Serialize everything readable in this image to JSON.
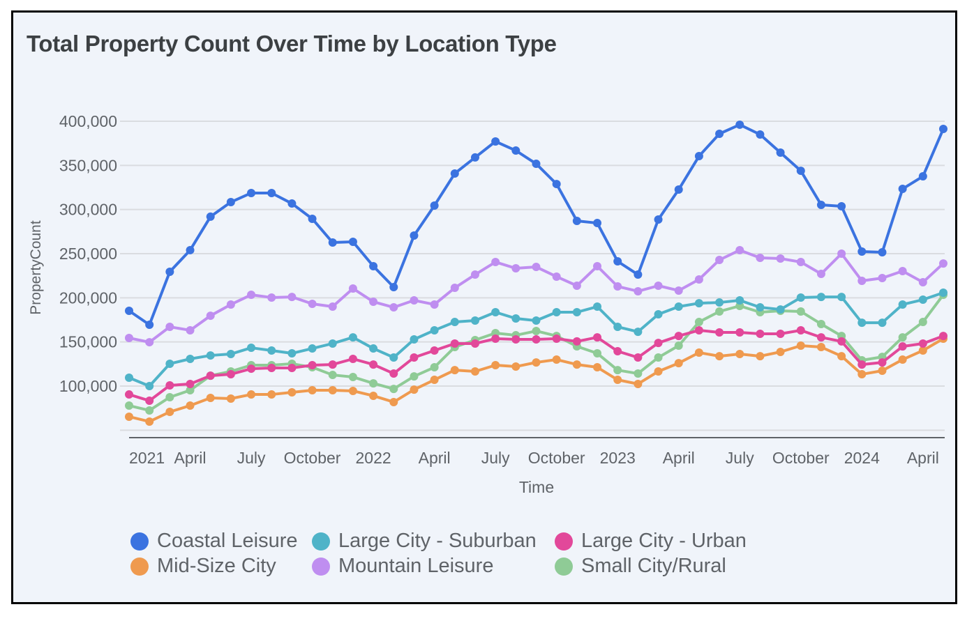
{
  "chart_data": {
    "type": "line",
    "title": "Total Property Count Over Time by Location Type",
    "xlabel": "Time",
    "ylabel": "PropertyCount",
    "ylim": [
      41600,
      400000
    ],
    "grid": true,
    "legend_position": "bottom",
    "yticks": [
      {
        "value": 50000,
        "label": ""
      },
      {
        "value": 100000,
        "label": "100,000"
      },
      {
        "value": 150000,
        "label": "150,000"
      },
      {
        "value": 200000,
        "label": "200,000"
      },
      {
        "value": 250000,
        "label": "250,000"
      },
      {
        "value": 300000,
        "label": "300,000"
      },
      {
        "value": 350000,
        "label": "350,000"
      },
      {
        "value": 400000,
        "label": "400,000"
      }
    ],
    "xticks": [
      {
        "index": 0,
        "label": "2021"
      },
      {
        "index": 3,
        "label": "April"
      },
      {
        "index": 6,
        "label": "July"
      },
      {
        "index": 9,
        "label": "October"
      },
      {
        "index": 12,
        "label": "2022"
      },
      {
        "index": 15,
        "label": "April"
      },
      {
        "index": 18,
        "label": "July"
      },
      {
        "index": 21,
        "label": "October"
      },
      {
        "index": 24,
        "label": "2023"
      },
      {
        "index": 27,
        "label": "April"
      },
      {
        "index": 30,
        "label": "July"
      },
      {
        "index": 33,
        "label": "October"
      },
      {
        "index": 36,
        "label": "2024"
      },
      {
        "index": 39,
        "label": "April"
      }
    ],
    "x_start": "2021-01",
    "x_end": "2024-05",
    "x_interval": "month",
    "series": [
      {
        "name": "Coastal Leisure",
        "color": "#3b73e0",
        "values": [
          185300,
          169500,
          229500,
          254000,
          291900,
          308400,
          318700,
          318700,
          306800,
          289500,
          262600,
          263400,
          235800,
          212100,
          270500,
          304500,
          340800,
          359000,
          377100,
          366800,
          351800,
          328900,
          287100,
          284700,
          241300,
          226300,
          288700,
          322600,
          360500,
          385800,
          396100,
          385000,
          364500,
          343900,
          305300,
          303700,
          252400,
          251600,
          323400,
          337600,
          391300
        ]
      },
      {
        "name": "Large City - Suburban",
        "color": "#4fb3c8",
        "values": [
          109500,
          100000,
          125300,
          130800,
          134700,
          136300,
          143400,
          140300,
          137100,
          142600,
          148200,
          155200,
          142600,
          132400,
          152900,
          163200,
          172600,
          174200,
          183700,
          176600,
          174200,
          183700,
          183700,
          190000,
          167100,
          161500,
          181300,
          190000,
          193900,
          194700,
          197100,
          189200,
          186800,
          200300,
          201000,
          201000,
          171800,
          171800,
          192400,
          197900,
          205800
        ]
      },
      {
        "name": "Large City - Urban",
        "color": "#e2489a",
        "values": [
          90500,
          83400,
          100800,
          102400,
          111800,
          113400,
          119700,
          120500,
          120500,
          123700,
          124400,
          130800,
          124400,
          114200,
          132400,
          140300,
          148200,
          148200,
          153700,
          152900,
          152900,
          153700,
          150600,
          155200,
          139500,
          132400,
          148900,
          156800,
          163200,
          160800,
          160800,
          159200,
          159200,
          163200,
          155200,
          150600,
          124400,
          126800,
          144900,
          148200,
          156800
        ]
      },
      {
        "name": "Mid-Size City",
        "color": "#ef9a4f",
        "values": [
          65300,
          59800,
          70800,
          77900,
          86600,
          85800,
          90500,
          90500,
          92900,
          95300,
          95300,
          94500,
          89000,
          81900,
          96000,
          107100,
          118100,
          116600,
          123700,
          122100,
          126800,
          130000,
          124400,
          121300,
          107100,
          102400,
          116600,
          126000,
          137900,
          133900,
          136300,
          133900,
          138700,
          145800,
          144200,
          133900,
          113400,
          117400,
          130000,
          140300,
          153700
        ]
      },
      {
        "name": "Mountain Leisure",
        "color": "#bf8ef0",
        "values": [
          154500,
          149700,
          167100,
          163200,
          179700,
          192400,
          203400,
          200300,
          201000,
          193200,
          190000,
          210500,
          195500,
          189200,
          197100,
          192400,
          211300,
          226300,
          240500,
          233400,
          235000,
          224000,
          213700,
          235800,
          212900,
          207400,
          213700,
          208200,
          220800,
          242900,
          254000,
          245300,
          244500,
          240500,
          227100,
          250000,
          219200,
          222400,
          230300,
          217600,
          238900
        ]
      },
      {
        "name": "Small City/Rural",
        "color": "#8fcb96",
        "values": [
          77900,
          72400,
          87400,
          95300,
          111800,
          116600,
          123700,
          123700,
          125300,
          121300,
          112600,
          110300,
          103100,
          96800,
          111000,
          121300,
          144200,
          152100,
          160000,
          157600,
          162400,
          156800,
          145000,
          137100,
          118100,
          114200,
          132400,
          145800,
          172600,
          184500,
          190800,
          183700,
          185300,
          184500,
          170300,
          156800,
          129200,
          133100,
          155200,
          172600,
          203400
        ]
      }
    ]
  }
}
